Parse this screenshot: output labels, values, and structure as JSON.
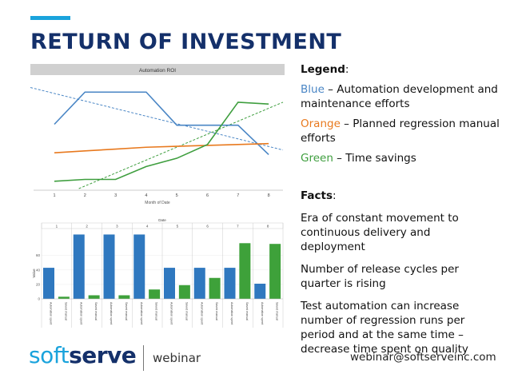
{
  "title": "RETURN OF INVESTMENT",
  "legend": {
    "heading": "Legend",
    "items": [
      {
        "name": "Blue",
        "text": " – Automation development and maintenance efforts",
        "color": "#4a86c5"
      },
      {
        "name": "Orange",
        "text": " – Planned regression manual efforts",
        "color": "#e8791e"
      },
      {
        "name": "Green",
        "text": " – Time savings",
        "color": "#3e9e3e"
      }
    ]
  },
  "facts": {
    "heading": "Facts",
    "items": [
      "Era of constant movement to continuous delivery and deployment",
      "Number of release cycles per quarter is rising",
      "Test automation can increase number of regression runs per period and at the same time – decrease time spent on quality"
    ]
  },
  "footer": {
    "logo_soft": "soft",
    "logo_serve": "serve",
    "webinar": "webinar",
    "email": "webinar@softserveinc.com"
  },
  "chart_data": [
    {
      "type": "line",
      "title": "Automation ROI",
      "xlabel": "Month of Date",
      "x": [
        1,
        2,
        3,
        4,
        5,
        6,
        7,
        8
      ],
      "series": [
        {
          "color": "#4a86c5",
          "values": [
            7,
            10.5,
            10.5,
            10.5,
            6.9,
            6.9,
            6.9,
            3.7
          ]
        },
        {
          "color": "#e8791e",
          "values": [
            3.9,
            4.1,
            4.3,
            4.5,
            4.6,
            4.7,
            4.8,
            4.9
          ]
        },
        {
          "color": "#3e9e3e",
          "values": [
            0.8,
            1.0,
            1.0,
            2.4,
            3.3,
            4.8,
            9.4,
            9.2
          ]
        }
      ],
      "trendlines": [
        {
          "color": "#4a86c5",
          "values": [
            11,
            4.2
          ]
        },
        {
          "color": "#3e9e3e",
          "values": [
            0,
            9.4
          ]
        }
      ],
      "ylim": [
        0,
        12
      ]
    },
    {
      "type": "bar",
      "title": "Date",
      "ylabel": "Value",
      "categories": [
        "1",
        "2",
        "3",
        "4",
        "5",
        "6",
        "7",
        "8"
      ],
      "series": [
        {
          "name": "Automation spent / earl / manual spent",
          "color": "#2f78bf",
          "values": [
            43,
            89,
            89,
            89,
            43,
            43,
            43,
            21
          ]
        },
        {
          "name": "Saved manual spent",
          "color": "#3ea13a",
          "values": [
            3,
            5,
            5,
            13,
            19,
            29,
            77,
            76
          ]
        }
      ],
      "yticks": [
        0,
        20,
        40,
        60
      ],
      "ylim": [
        0,
        95
      ],
      "legend_rows": [
        "Automation spent",
        "Saved manual"
      ]
    }
  ]
}
